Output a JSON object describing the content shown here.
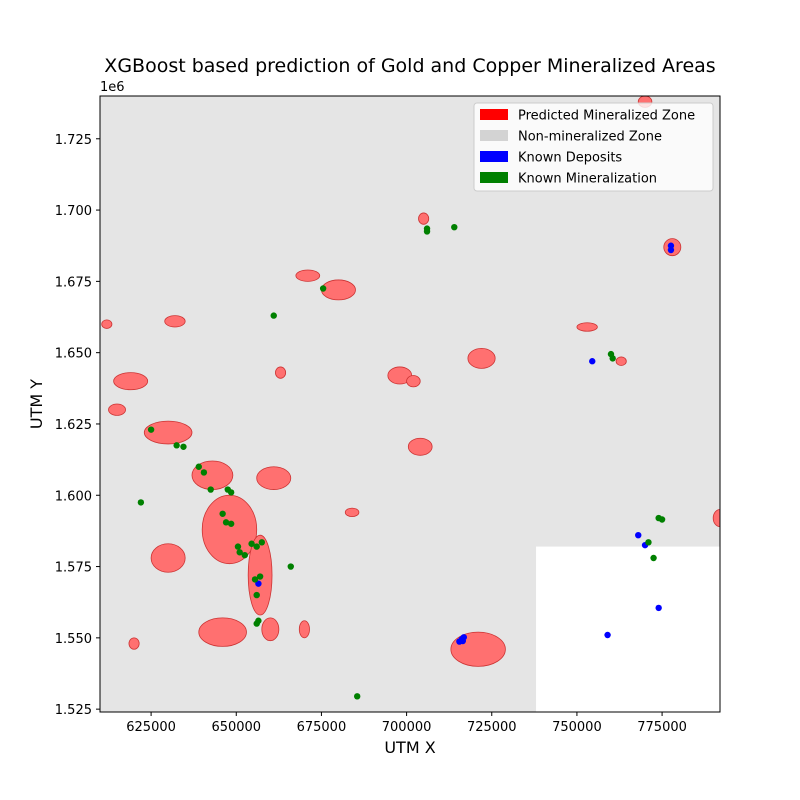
{
  "chart_data": {
    "type": "scatter",
    "title": "XGBoost based prediction of Gold and Copper Mineralized Areas",
    "xlabel": "UTM X",
    "ylabel": "UTM Y",
    "offset_label": "1e6",
    "xlim": [
      610000,
      792000
    ],
    "ylim": [
      1524000,
      1740000
    ],
    "x_ticks": [
      625000,
      650000,
      675000,
      700000,
      725000,
      750000,
      775000
    ],
    "x_tick_labels": [
      "625000",
      "650000",
      "675000",
      "700000",
      "725000",
      "750000",
      "775000"
    ],
    "y_ticks": [
      1525000,
      1550000,
      1575000,
      1600000,
      1625000,
      1650000,
      1675000,
      1700000,
      1725000
    ],
    "y_tick_labels": [
      "1.525",
      "1.550",
      "1.575",
      "1.600",
      "1.625",
      "1.650",
      "1.675",
      "1.700",
      "1.725"
    ],
    "legend_placement": "top-right",
    "legend": [
      {
        "label": "Predicted Mineralized Zone",
        "color": "#ff0000"
      },
      {
        "label": "Non-mineralized Zone",
        "color": "#d3d3d3"
      },
      {
        "label": "Known Deposits",
        "color": "#0000ff"
      },
      {
        "label": "Known Mineralization",
        "color": "#008000"
      }
    ],
    "colors": {
      "background_zone": "#e5e5e5",
      "predicted_fill": "#ff7070",
      "predicted_edge": "#cc3333",
      "deposit": "#0000ff",
      "mineralization": "#008000"
    },
    "no_data_region": {
      "x": [
        738000,
        792000
      ],
      "y": [
        1524000,
        1582000
      ]
    },
    "predicted_zones": [
      {
        "x": 648000,
        "y": 1588000,
        "rx": 8000,
        "ry": 12000
      },
      {
        "x": 657000,
        "y": 1572000,
        "rx": 3500,
        "ry": 14000
      },
      {
        "x": 646000,
        "y": 1552000,
        "rx": 7000,
        "ry": 5000
      },
      {
        "x": 630000,
        "y": 1622000,
        "rx": 7000,
        "ry": 4000
      },
      {
        "x": 643000,
        "y": 1607000,
        "rx": 6000,
        "ry": 5000
      },
      {
        "x": 661000,
        "y": 1606000,
        "rx": 5000,
        "ry": 4000
      },
      {
        "x": 619000,
        "y": 1640000,
        "rx": 5000,
        "ry": 3000
      },
      {
        "x": 615000,
        "y": 1630000,
        "rx": 2500,
        "ry": 2000
      },
      {
        "x": 630000,
        "y": 1578000,
        "rx": 5000,
        "ry": 5000
      },
      {
        "x": 721000,
        "y": 1546000,
        "rx": 8000,
        "ry": 6000
      },
      {
        "x": 704000,
        "y": 1617000,
        "rx": 3500,
        "ry": 3000
      },
      {
        "x": 698000,
        "y": 1642000,
        "rx": 3500,
        "ry": 3000
      },
      {
        "x": 722000,
        "y": 1648000,
        "rx": 4000,
        "ry": 3500
      },
      {
        "x": 680000,
        "y": 1672000,
        "rx": 5000,
        "ry": 3500
      },
      {
        "x": 671000,
        "y": 1677000,
        "rx": 3500,
        "ry": 2000
      },
      {
        "x": 632000,
        "y": 1661000,
        "rx": 3000,
        "ry": 2000
      },
      {
        "x": 753000,
        "y": 1659000,
        "rx": 3000,
        "ry": 1500
      },
      {
        "x": 778000,
        "y": 1687000,
        "rx": 2500,
        "ry": 3000
      },
      {
        "x": 705000,
        "y": 1697000,
        "rx": 1500,
        "ry": 2000
      },
      {
        "x": 702000,
        "y": 1640000,
        "rx": 2000,
        "ry": 2000
      },
      {
        "x": 620000,
        "y": 1548000,
        "rx": 1500,
        "ry": 2000
      },
      {
        "x": 660000,
        "y": 1553000,
        "rx": 2500,
        "ry": 4000
      },
      {
        "x": 670000,
        "y": 1553000,
        "rx": 1500,
        "ry": 3000
      },
      {
        "x": 792000,
        "y": 1592000,
        "rx": 2000,
        "ry": 3000
      },
      {
        "x": 612000,
        "y": 1660000,
        "rx": 1500,
        "ry": 1500
      },
      {
        "x": 684000,
        "y": 1594000,
        "rx": 2000,
        "ry": 1500
      },
      {
        "x": 770000,
        "y": 1738000,
        "rx": 2000,
        "ry": 2000
      },
      {
        "x": 763000,
        "y": 1647000,
        "rx": 1500,
        "ry": 1500
      },
      {
        "x": 663000,
        "y": 1643000,
        "rx": 1500,
        "ry": 2000
      }
    ],
    "series": [
      {
        "name": "Known Deposits",
        "points": [
          [
            656500,
            1569000
          ],
          [
            715500,
            1548700
          ],
          [
            716200,
            1549500
          ],
          [
            716800,
            1550200
          ],
          [
            716500,
            1548900
          ],
          [
            754500,
            1647000
          ],
          [
            768000,
            1586000
          ],
          [
            770000,
            1582500
          ],
          [
            759000,
            1551000
          ],
          [
            774000,
            1560500
          ],
          [
            777600,
            1687500
          ],
          [
            777600,
            1686000
          ]
        ]
      },
      {
        "name": "Known Mineralization",
        "points": [
          [
            625000,
            1623000
          ],
          [
            622000,
            1597500
          ],
          [
            632500,
            1617500
          ],
          [
            634500,
            1617000
          ],
          [
            639000,
            1610000
          ],
          [
            640500,
            1608000
          ],
          [
            642500,
            1602000
          ],
          [
            647500,
            1602000
          ],
          [
            648500,
            1601000
          ],
          [
            646000,
            1593500
          ],
          [
            647000,
            1590500
          ],
          [
            648500,
            1590000
          ],
          [
            650500,
            1582000
          ],
          [
            651000,
            1580000
          ],
          [
            652500,
            1579000
          ],
          [
            654500,
            1583000
          ],
          [
            656000,
            1582000
          ],
          [
            657500,
            1583500
          ],
          [
            655500,
            1570500
          ],
          [
            657000,
            1571500
          ],
          [
            656000,
            1565000
          ],
          [
            656500,
            1556000
          ],
          [
            656000,
            1555000
          ],
          [
            661000,
            1663000
          ],
          [
            675500,
            1672500
          ],
          [
            666000,
            1575000
          ],
          [
            685500,
            1529500
          ],
          [
            706000,
            1693500
          ],
          [
            706000,
            1692500
          ],
          [
            714000,
            1694000
          ],
          [
            760000,
            1649500
          ],
          [
            760500,
            1648000
          ],
          [
            771000,
            1583500
          ],
          [
            772500,
            1578000
          ],
          [
            774000,
            1592000
          ],
          [
            775000,
            1591500
          ]
        ]
      }
    ]
  }
}
